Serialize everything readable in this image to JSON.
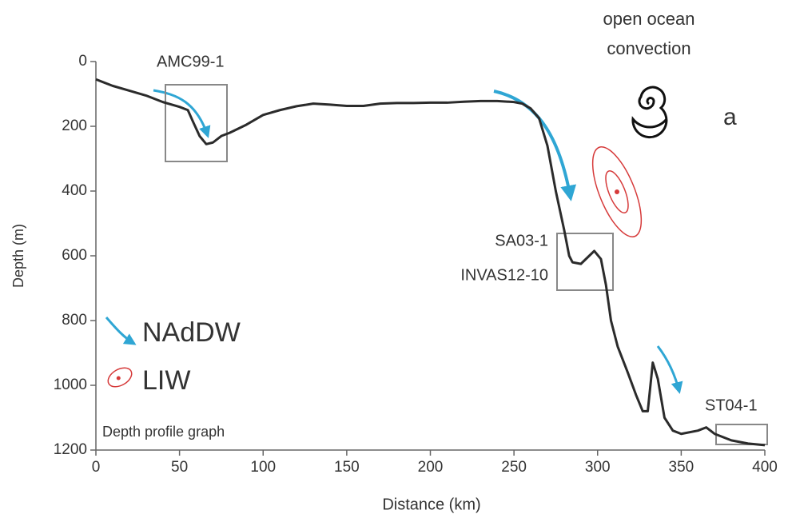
{
  "chart_data": {
    "type": "line",
    "x_label": "Distance (km)",
    "y_label": "Depth (m)",
    "xlim": [
      0,
      400
    ],
    "xticks": [
      0,
      50,
      100,
      150,
      200,
      250,
      300,
      350,
      400
    ],
    "ylim": [
      0,
      1200
    ],
    "yticks": [
      0,
      200,
      400,
      600,
      800,
      1000,
      1200
    ],
    "y_inverted": true,
    "x": [
      0,
      10,
      20,
      30,
      40,
      50,
      55,
      58,
      62,
      66,
      70,
      75,
      80,
      90,
      100,
      110,
      120,
      130,
      140,
      150,
      160,
      170,
      180,
      190,
      200,
      210,
      220,
      230,
      240,
      250,
      255,
      260,
      265,
      270,
      275,
      280,
      283,
      285,
      290,
      295,
      298,
      302,
      305,
      308,
      312,
      318,
      323,
      327,
      330,
      333,
      336,
      340,
      345,
      350,
      360,
      365,
      370,
      380,
      390,
      400
    ],
    "values": [
      55,
      75,
      90,
      105,
      125,
      140,
      150,
      185,
      230,
      255,
      250,
      230,
      220,
      195,
      165,
      150,
      138,
      130,
      133,
      137,
      137,
      130,
      128,
      128,
      127,
      127,
      124,
      122,
      122,
      125,
      130,
      145,
      175,
      260,
      400,
      520,
      600,
      620,
      625,
      600,
      585,
      610,
      690,
      800,
      880,
      960,
      1030,
      1080,
      1080,
      930,
      980,
      1100,
      1140,
      1150,
      1140,
      1130,
      1150,
      1170,
      1180,
      1185
    ],
    "color": "#2b2b2b",
    "annotations": [
      {
        "text": "AMC99-1",
        "color": "#2a9a72"
      },
      {
        "text": "SA03-1",
        "color": "#e39a3a"
      },
      {
        "text": "INVAS12-10",
        "color": "#e39a3a"
      },
      {
        "text": "ST04-1",
        "color": "#2a9fd0"
      },
      {
        "text": "open ocean",
        "color": "#222222"
      },
      {
        "text": "convection",
        "color": "#222222"
      },
      {
        "text": "a",
        "color": "#222222"
      },
      {
        "text": "Depth profile graph",
        "color": "#222222"
      }
    ],
    "legend_items": [
      "NAdDW",
      "LIW"
    ]
  }
}
